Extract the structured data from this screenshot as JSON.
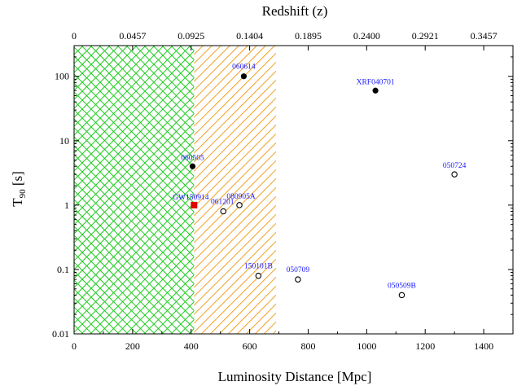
{
  "chart_data": {
    "type": "scatter",
    "xlabel": "Luminosity Distance [Mpc]",
    "ylabel_main": "T",
    "ylabel_sub": "90",
    "ylabel_unit": " [s]",
    "top_label": "Redshift (z)",
    "xlim": [
      0,
      1500
    ],
    "ylim": [
      0.01,
      300
    ],
    "yscale": "log",
    "x_ticks": [
      0,
      200,
      400,
      600,
      800,
      1000,
      1200,
      1400
    ],
    "x_tick_labels": [
      "0",
      "200",
      "400",
      "600",
      "800",
      "1000",
      "1200",
      "1400"
    ],
    "y_ticks": [
      0.01,
      0.1,
      1,
      10,
      100
    ],
    "y_tick_labels": [
      "0.01",
      "0.1",
      "1",
      "10",
      "100"
    ],
    "top_ticks": [
      0,
      0.0457,
      0.0925,
      0.1404,
      0.1895,
      0.24,
      0.2921,
      0.3457
    ],
    "top_tick_labels": [
      "0",
      "0.0457",
      "0.0925",
      "0.1404",
      "0.1895",
      "0.2400",
      "0.2921",
      "0.3457"
    ],
    "shaded_regions": [
      {
        "x_start": 0,
        "x_end": 410,
        "color": "#22cc22",
        "pattern": "cross-hatch"
      },
      {
        "x_start": 410,
        "x_end": 690,
        "color": "#f0a020",
        "pattern": "hatch"
      }
    ],
    "points": [
      {
        "label": "060614",
        "x": 580,
        "y": 100,
        "marker": "filled-circle"
      },
      {
        "label": "XRF040701",
        "x": 1030,
        "y": 60,
        "marker": "filled-circle"
      },
      {
        "label": "060505",
        "x": 405,
        "y": 4,
        "marker": "filled-circle"
      },
      {
        "label": "050724",
        "x": 1300,
        "y": 3,
        "marker": "open-circle"
      },
      {
        "label": "GW150914",
        "x": 410,
        "y": 1,
        "marker": "filled-square"
      },
      {
        "label": "080905A",
        "x": 565,
        "y": 1,
        "marker": "open-circle"
      },
      {
        "label": "061201",
        "x": 510,
        "y": 0.8,
        "marker": "open-circle"
      },
      {
        "label": "150101B",
        "x": 630,
        "y": 0.08,
        "marker": "open-circle"
      },
      {
        "label": "050709",
        "x": 765,
        "y": 0.07,
        "marker": "open-circle"
      },
      {
        "label": "050509B",
        "x": 1120,
        "y": 0.04,
        "marker": "open-circle"
      }
    ],
    "colors": {
      "label": "#1a1aff",
      "green": "#22cc22",
      "orange": "#f0a020",
      "square": "#e00000"
    }
  }
}
